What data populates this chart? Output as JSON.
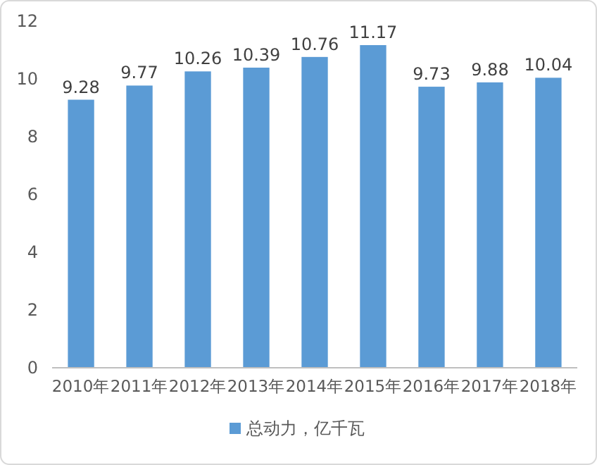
{
  "chart_data": {
    "type": "bar",
    "categories": [
      "2010年",
      "2011年",
      "2012年",
      "2013年",
      "2014年",
      "2015年",
      "2016年",
      "2017年",
      "2018年"
    ],
    "series": [
      {
        "name": "总动力，亿千瓦",
        "color": "#5b9bd5",
        "values": [
          9.28,
          9.77,
          10.26,
          10.39,
          10.76,
          11.17,
          9.73,
          9.88,
          10.04
        ]
      }
    ],
    "ylim": [
      0,
      12
    ],
    "yticks": [
      0,
      2,
      4,
      6,
      8,
      10,
      12
    ],
    "data_labels": true,
    "legend": "bottom",
    "grid": false
  }
}
